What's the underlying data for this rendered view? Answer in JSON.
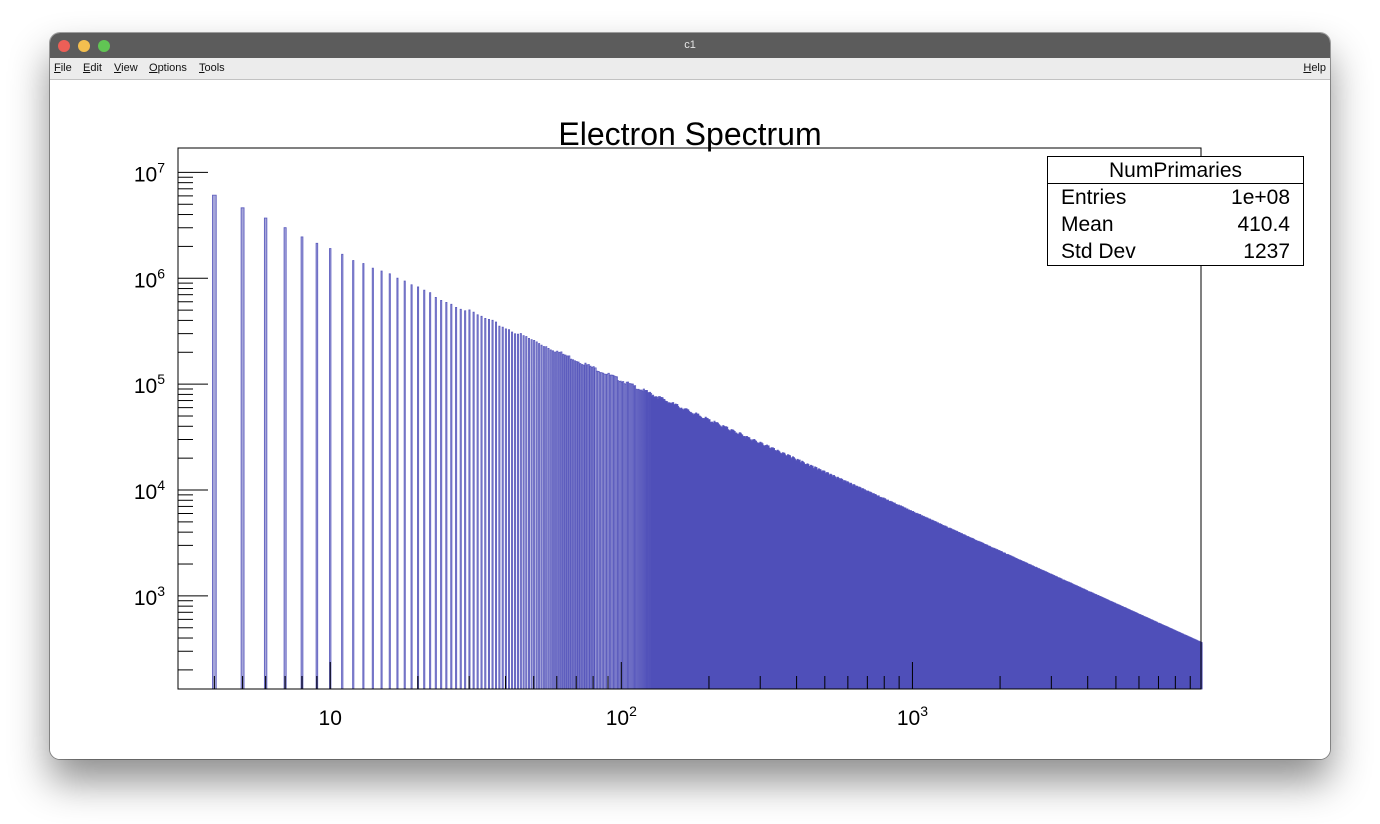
{
  "window": {
    "title": "c1",
    "traffic_lights": [
      "close",
      "minimize",
      "zoom"
    ]
  },
  "menubar": {
    "items": [
      {
        "label": "File",
        "mnemonic": "F",
        "rest": "ile"
      },
      {
        "label": "Edit",
        "mnemonic": "E",
        "rest": "dit"
      },
      {
        "label": "View",
        "mnemonic": "V",
        "rest": "iew"
      },
      {
        "label": "Options",
        "mnemonic": "O",
        "rest": "ptions"
      },
      {
        "label": "Tools",
        "mnemonic": "T",
        "rest": "ools"
      }
    ],
    "help": {
      "label": "Help",
      "mnemonic": "H",
      "rest": "elp"
    }
  },
  "stats_box": {
    "title": "NumPrimaries",
    "rows": [
      {
        "key": "Entries",
        "value": "1e+08"
      },
      {
        "key": "Mean",
        "value": "410.4"
      },
      {
        "key": "Std Dev",
        "value": "1237"
      }
    ]
  },
  "chart_data": {
    "type": "bar",
    "title": "Electron Spectrum",
    "xlabel": "",
    "ylabel": "",
    "xscale": "log",
    "yscale": "log",
    "xlim": [
      3.0,
      9800
    ],
    "ylim": [
      132,
      17000000
    ],
    "x_ticks": [
      {
        "base": "10",
        "exp": "",
        "value": 10
      },
      {
        "base": "10",
        "exp": "2",
        "value": 100
      },
      {
        "base": "10",
        "exp": "3",
        "value": 1000
      }
    ],
    "y_ticks": [
      {
        "base": "10",
        "exp": "3",
        "value": 1000
      },
      {
        "base": "10",
        "exp": "4",
        "value": 10000
      },
      {
        "base": "10",
        "exp": "5",
        "value": 100000
      },
      {
        "base": "10",
        "exp": "6",
        "value": 1000000
      },
      {
        "base": "10",
        "exp": "7",
        "value": 10000000
      }
    ],
    "grid": false,
    "legend": "none",
    "series": [
      {
        "name": "NumPrimaries",
        "model": "power law, integer-valued bins",
        "amplitude": 34000000,
        "exponent": -1.25,
        "x_start": 4,
        "sample_points": [
          {
            "x": 4,
            "y": 6500000
          },
          {
            "x": 5,
            "y": 4900000
          },
          {
            "x": 6,
            "y": 4000000
          },
          {
            "x": 7,
            "y": 3400000
          },
          {
            "x": 8,
            "y": 2900000
          },
          {
            "x": 10,
            "y": 2200000
          },
          {
            "x": 20,
            "y": 800000
          },
          {
            "x": 50,
            "y": 250000
          },
          {
            "x": 100,
            "y": 110000
          },
          {
            "x": 300,
            "y": 28000
          },
          {
            "x": 1000,
            "y": 6500
          },
          {
            "x": 3000,
            "y": 1600
          },
          {
            "x": 9800,
            "y": 330
          }
        ]
      }
    ],
    "colors": {
      "fill": "#5c5cbb",
      "line": "#3a3ab0",
      "frame": "#000000"
    }
  }
}
